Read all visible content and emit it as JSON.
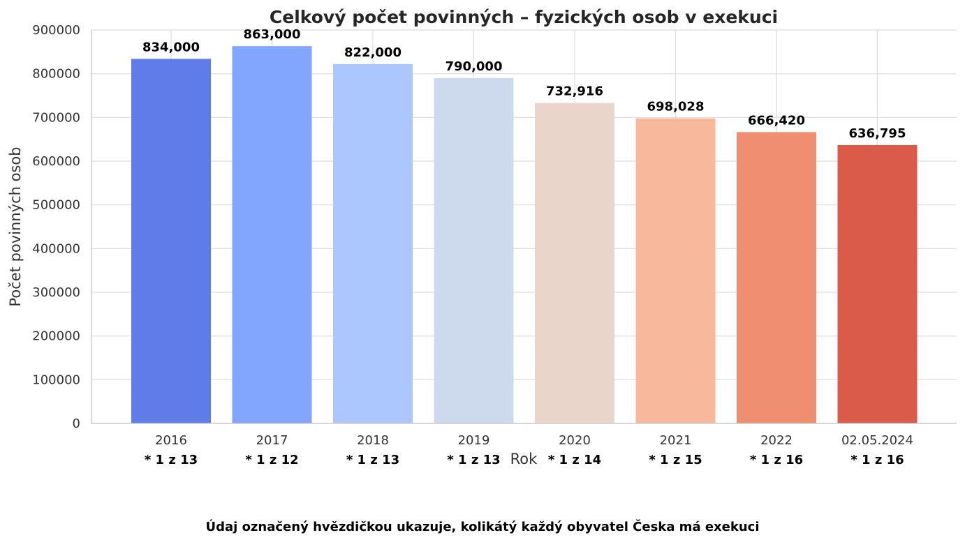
{
  "chart_data": {
    "type": "bar",
    "title": "Celkový počet povinných – fyzických osob v exekuci",
    "xlabel": "Rok",
    "ylabel": "Počet povinných osob",
    "categories": [
      "2016",
      "2017",
      "2018",
      "2019",
      "2020",
      "2021",
      "2022",
      "02.05.2024"
    ],
    "values": [
      834000,
      863000,
      822000,
      790000,
      732916,
      698028,
      666420,
      636795
    ],
    "value_labels": [
      "834,000",
      "863,000",
      "822,000",
      "790,000",
      "732,916",
      "698,028",
      "666,420",
      "636,795"
    ],
    "ratio_labels": [
      "* 1 z 13",
      "* 1 z 12",
      "* 1 z 13",
      "* 1 z 13",
      "* 1 z 14",
      "* 1 z 15",
      "* 1 z 16",
      "* 1 z 16"
    ],
    "colors": [
      "#5f7ce8",
      "#82a6fd",
      "#abc7fd",
      "#cdd9ec",
      "#ead5ca",
      "#f7b89c",
      "#ef8e71",
      "#db5b4a"
    ],
    "ylim": [
      0,
      900000
    ],
    "yticks": [
      "0",
      "100000",
      "200000",
      "300000",
      "400000",
      "500000",
      "600000",
      "700000",
      "800000",
      "900000"
    ],
    "grid": true,
    "footnote": "Údaj označený hvězdičkou ukazuje, kolikátý každý obyvatel Česka má exekuci"
  }
}
